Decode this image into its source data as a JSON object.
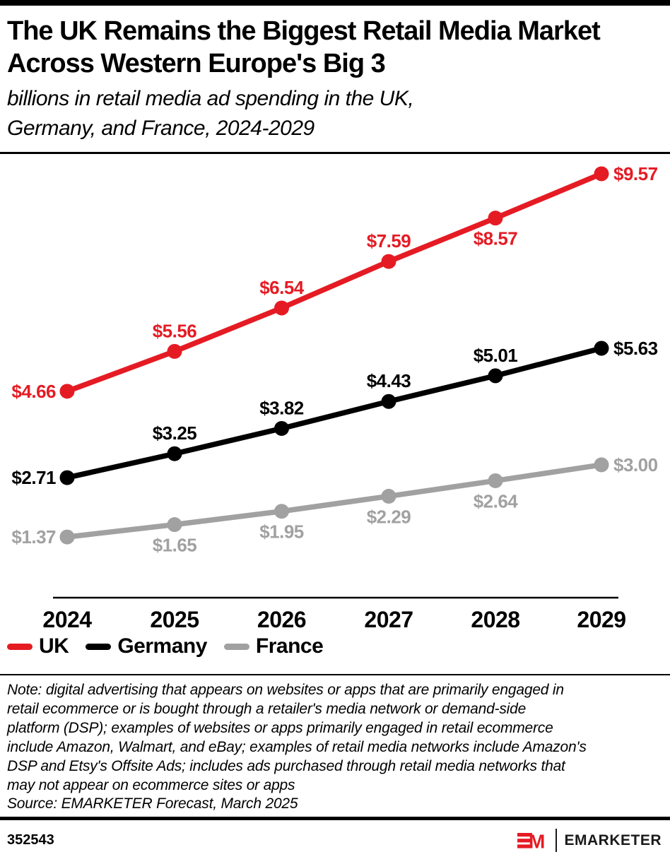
{
  "header": {
    "title_lines": [
      "The UK Remains the Biggest Retail Media Market",
      "Across Western Europe's Big 3"
    ],
    "subtitle_lines": [
      "billions in retail media ad spending in the UK,",
      "Germany, and France, 2024-2029"
    ]
  },
  "chart_data": {
    "type": "line",
    "title": "The UK Remains the Biggest Retail Media Market Across Western Europe's Big 3",
    "subtitle": "billions in retail media ad spending in the UK, Germany, and France, 2024-2029",
    "unit": "USD billions",
    "x": [
      "2024",
      "2025",
      "2026",
      "2027",
      "2028",
      "2029"
    ],
    "ylim": [
      0,
      10
    ],
    "grid": false,
    "legend_position": "bottom-left",
    "value_prefix": "$",
    "series": [
      {
        "name": "UK",
        "color": "#E51B24",
        "values": [
          4.66,
          5.56,
          6.54,
          7.59,
          8.57,
          9.57
        ],
        "label_positions": [
          "left",
          "above",
          "above",
          "above",
          "below",
          "right"
        ]
      },
      {
        "name": "Germany",
        "color": "#000000",
        "values": [
          2.71,
          3.25,
          3.82,
          4.43,
          5.01,
          5.63
        ],
        "label_positions": [
          "left",
          "above",
          "above",
          "above",
          "above",
          "right"
        ]
      },
      {
        "name": "France",
        "color": "#A1A1A1",
        "values": [
          1.37,
          1.65,
          1.95,
          2.29,
          2.64,
          3.0
        ],
        "label_positions": [
          "left",
          "below",
          "below",
          "below",
          "below",
          "right"
        ]
      }
    ]
  },
  "note": {
    "lines": [
      "Note: digital advertising that appears on websites or apps that are primarily engaged in",
      "retail ecommerce or is bought through a retailer's media network or demand-side",
      "platform (DSP); examples of websites or apps primarily engaged in retail ecommerce",
      "include Amazon, Walmart, and eBay; examples of retail media networks include Amazon's",
      "DSP and Etsy's Offsite Ads; includes ads purchased through retail media networks that",
      "may not appear on ecommerce sites or apps"
    ],
    "source": "Source: EMARKETER Forecast, March 2025"
  },
  "footer": {
    "chart_id": "352543",
    "brand_monogram": "M",
    "brand_name": "EMARKETER"
  }
}
